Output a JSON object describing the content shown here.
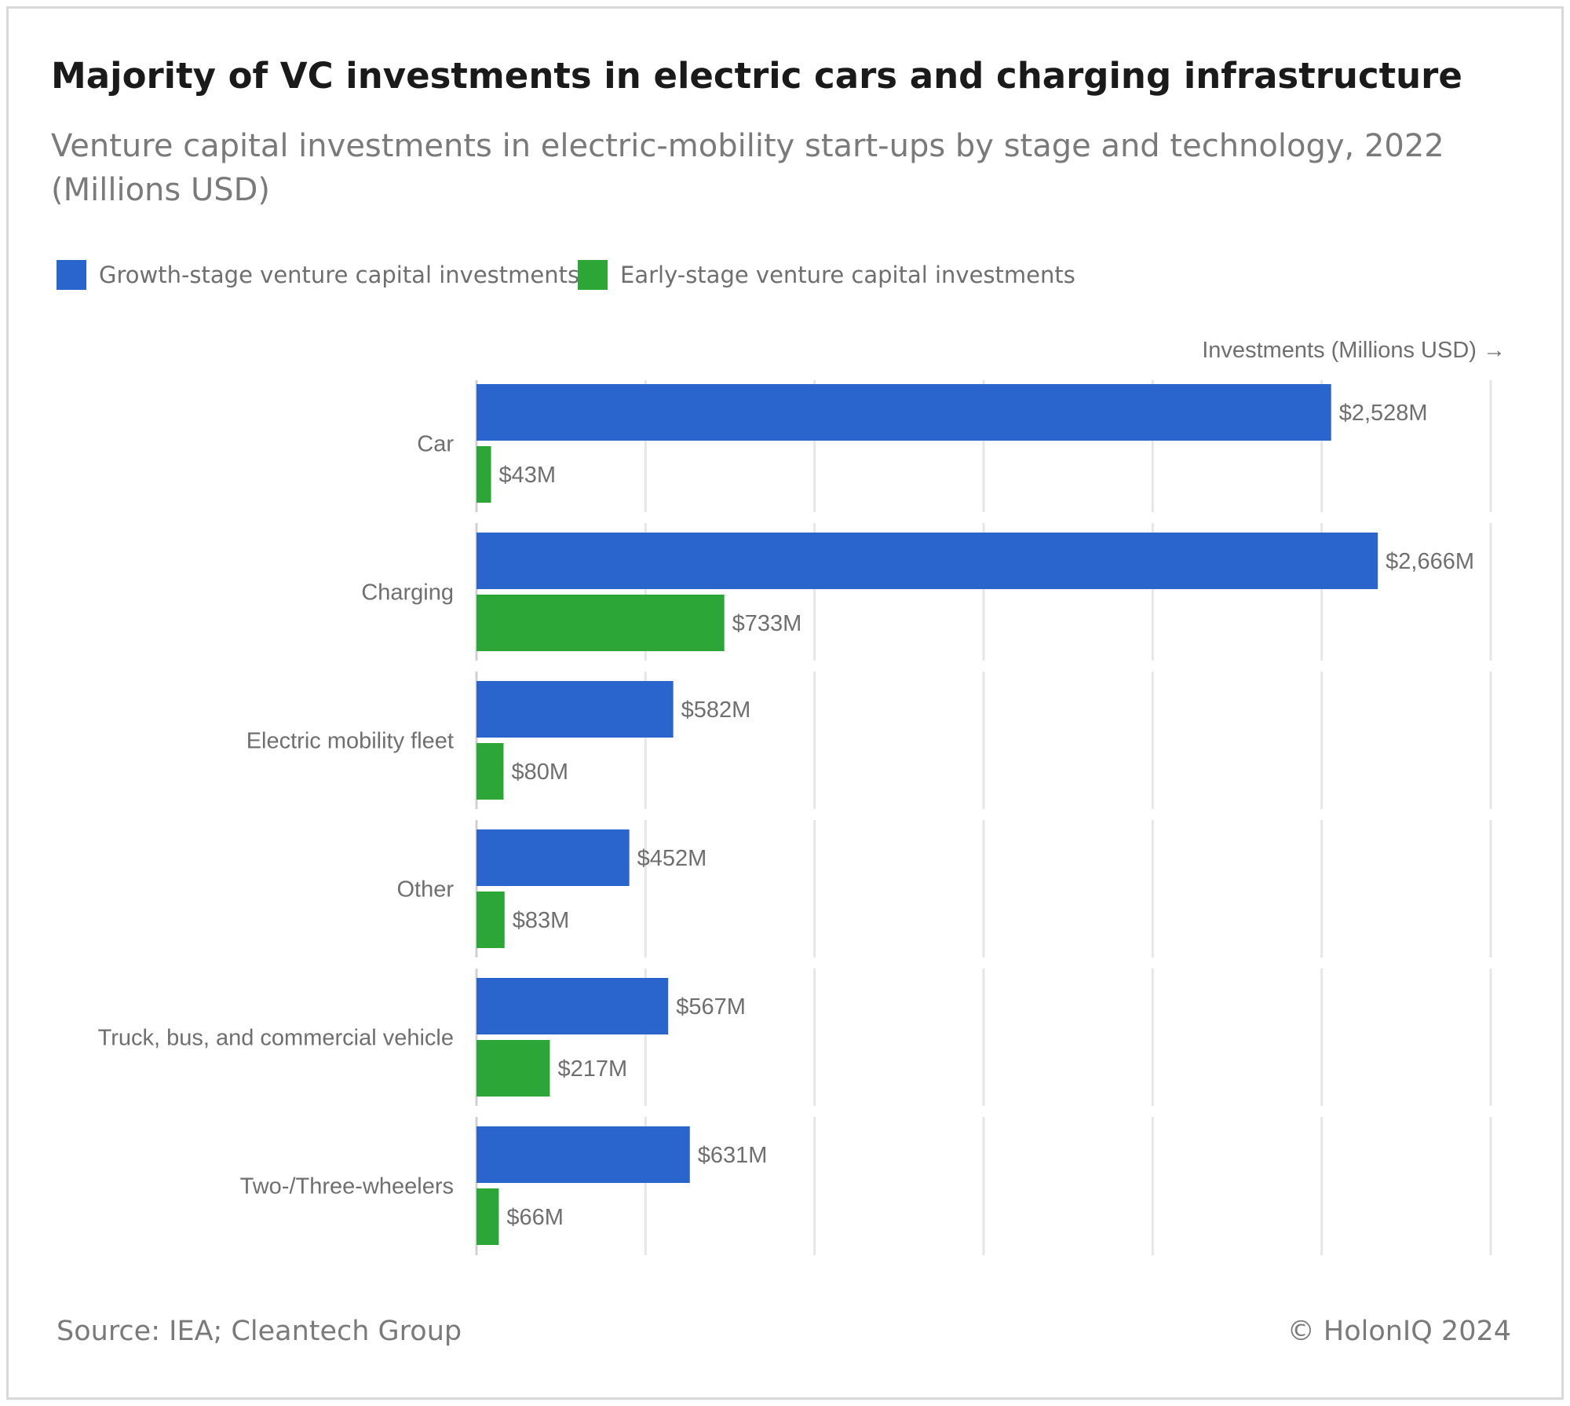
{
  "title": "Majority of VC investments in electric cars and charging infrastructure",
  "subtitle": "Venture capital investments in electric-mobility start-ups by stage and technology, 2022 (Millions USD)",
  "legend": [
    {
      "label": "Growth-stage venture capital investments",
      "color": "#2a65ce"
    },
    {
      "label": "Early-stage venture capital investments",
      "color": "#2ba637"
    }
  ],
  "footer": {
    "source": "Source: IEA; Cleantech Group",
    "copyright": "© HolonIQ 2024"
  },
  "chart_data": {
    "type": "bar",
    "orientation": "horizontal",
    "xlabel": "Investments (Millions USD) →",
    "categories": [
      "Car",
      "Charging",
      "Electric mobility fleet",
      "Other",
      "Truck, bus, and commercial vehicle",
      "Two-/Three-wheelers"
    ],
    "series": [
      {
        "name": "Growth-stage venture capital investments",
        "color": "#2a65ce",
        "values": [
          2528,
          2666,
          582,
          452,
          567,
          631
        ],
        "labels": [
          "$2,528M",
          "$2,666M",
          "$582M",
          "$452M",
          "$567M",
          "$631M"
        ]
      },
      {
        "name": "Early-stage venture capital investments",
        "color": "#2ba637",
        "values": [
          43,
          733,
          80,
          83,
          217,
          66
        ],
        "labels": [
          "$43M",
          "$733M",
          "$80M",
          "$83M",
          "$217M",
          "$66M"
        ]
      }
    ],
    "xlim": [
      0,
      3000
    ],
    "grid": true,
    "legend_position": "top-left"
  }
}
